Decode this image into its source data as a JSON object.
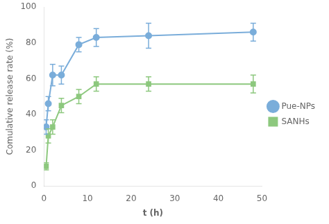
{
  "chart_data": {
    "type": "line",
    "xlabel": "t (h)",
    "ylabel": "Comulative release rate (%)",
    "x": [
      0.5,
      1,
      2,
      4,
      8,
      12,
      24,
      48
    ],
    "series": [
      {
        "name": "Pue-NPs",
        "color": "#7aadda",
        "marker": "circle",
        "values": [
          33,
          46,
          62,
          62,
          79,
          83,
          84,
          86
        ],
        "yerr": [
          4,
          4,
          6,
          5,
          4,
          5,
          7,
          5
        ]
      },
      {
        "name": "SANHs",
        "color": "#8dc87e",
        "marker": "square",
        "values": [
          11,
          28,
          33,
          45,
          50,
          57,
          57,
          57
        ],
        "yerr": [
          2,
          4,
          4,
          4,
          4,
          4,
          4,
          5
        ]
      }
    ],
    "xlim": [
      0,
      50
    ],
    "ylim": [
      0,
      100
    ],
    "xticks": [
      0,
      10,
      20,
      30,
      40,
      50
    ],
    "yticks": [
      0,
      20,
      40,
      60,
      80,
      100
    ],
    "grid": false,
    "legend": "right"
  }
}
